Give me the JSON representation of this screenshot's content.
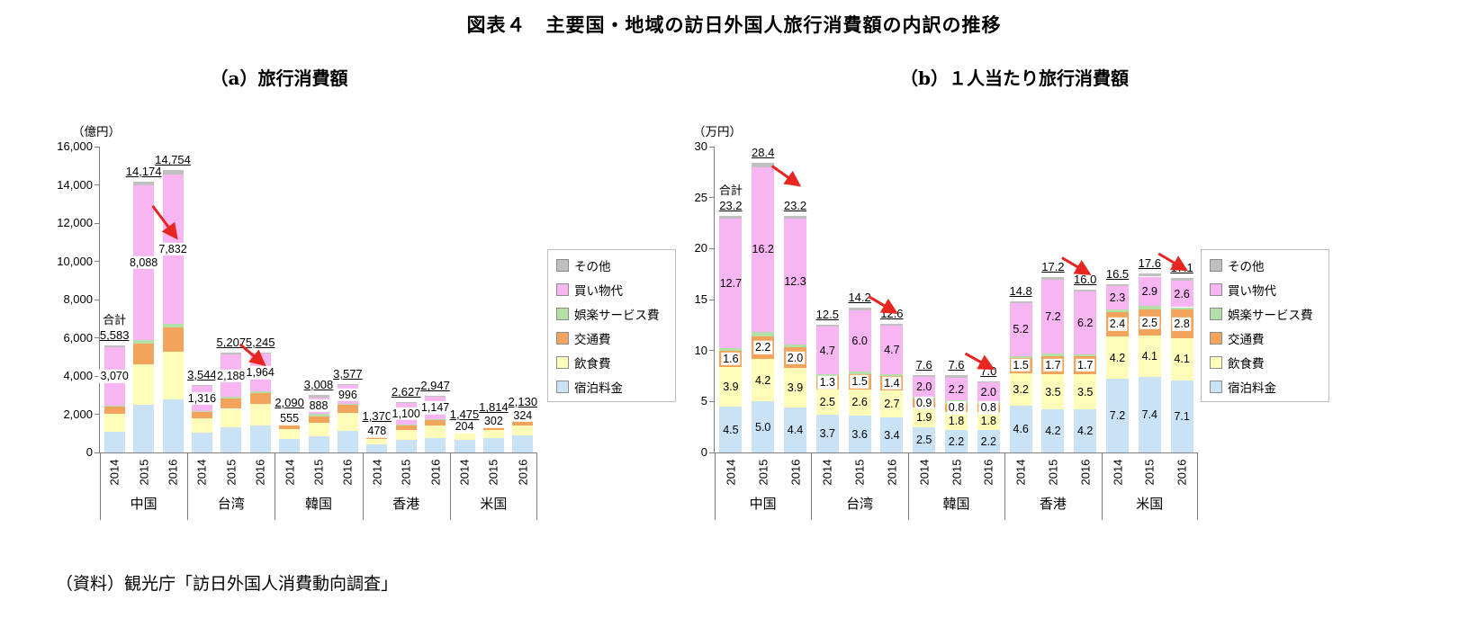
{
  "title": "図表４　主要国・地域の訪日外国人旅行消費額の内訳の推移",
  "source_note": "（資料）観光庁「訪日外国人消費動向調査」",
  "legend": {
    "items": [
      {
        "key": "other",
        "label": "その他",
        "color": "#c0c0c0"
      },
      {
        "key": "shopping",
        "label": "買い物代",
        "color": "#f7b6f1"
      },
      {
        "key": "entertainment",
        "label": "娯楽サービス費",
        "color": "#b3e0a6"
      },
      {
        "key": "transport",
        "label": "交通費",
        "color": "#f2a45c"
      },
      {
        "key": "food",
        "label": "飲食費",
        "color": "#fffbb9"
      },
      {
        "key": "lodging",
        "label": "宿泊料金",
        "color": "#c9e2f6"
      }
    ]
  },
  "chart_data": [
    {
      "id": "a",
      "type": "bar",
      "stacked": true,
      "subtitle": "（a）旅行消費額",
      "unit_label": "（億円）",
      "total_prefix": "合計",
      "ylim": [
        0,
        16000
      ],
      "yticks": [
        "0",
        "2,000",
        "4,000",
        "6,000",
        "8,000",
        "10,000",
        "12,000",
        "14,000",
        "16,000"
      ],
      "groups": [
        "中国",
        "台湾",
        "韓国",
        "香港",
        "米国"
      ],
      "years": [
        "2014",
        "2015",
        "2016"
      ],
      "stack_order": [
        "宿泊料金",
        "飲食費",
        "交通費",
        "娯楽サービス費",
        "買い物代",
        "その他"
      ],
      "boxed_label_series": [
        "買い物代"
      ],
      "bars": [
        {
          "group": "中国",
          "year": "2014",
          "total": 5583,
          "total_label": "5,583",
          "show_total_prefix": true,
          "segments": {
            "宿泊料金": 1080,
            "飲食費": 930,
            "交通費": 380,
            "娯楽サービス費": 60,
            "買い物代": 3070,
            "その他": 63
          },
          "segment_labels": {
            "買い物代": "3,070"
          }
        },
        {
          "group": "中国",
          "year": "2015",
          "total": 14174,
          "total_label": "14,174",
          "segments": {
            "宿泊料金": 2494,
            "飲食費": 2095,
            "交通費": 1098,
            "娯楽サービス費": 200,
            "買い物代": 8088,
            "その他": 199
          },
          "segment_labels": {
            "買い物代": "8,088"
          }
        },
        {
          "group": "中国",
          "year": "2016",
          "total": 14754,
          "total_label": "14,754",
          "segments": {
            "宿泊料金": 2794,
            "飲食費": 2476,
            "交通費": 1270,
            "娯楽サービス費": 190,
            "買い物代": 7832,
            "その他": 192
          },
          "segment_labels": {
            "買い物代": "7,832"
          }
        },
        {
          "group": "台湾",
          "year": "2014",
          "total": 3544,
          "total_label": "3,544",
          "segments": {
            "宿泊料金": 1057,
            "飲食費": 714,
            "交通費": 371,
            "娯楽サービス費": 43,
            "買い物代": 1316,
            "その他": 43
          },
          "segment_labels": {
            "買い物代": "1,316"
          }
        },
        {
          "group": "台湾",
          "year": "2015",
          "total": 5207,
          "total_label": "5,207",
          "segments": {
            "宿泊料金": 1325,
            "飲食費": 957,
            "交通費": 552,
            "娯楽サービス費": 92,
            "買い物代": 2188,
            "その他": 93
          },
          "segment_labels": {
            "買い物代": "2,188"
          }
        },
        {
          "group": "台湾",
          "year": "2016",
          "total": 5245,
          "total_label": "5,245",
          "segments": {
            "宿泊料金": 1412,
            "飲食費": 1121,
            "交通費": 581,
            "娯楽サービス費": 83,
            "買い物代": 1964,
            "その他": 84
          },
          "segment_labels": {
            "買い物代": "1,964"
          }
        },
        {
          "group": "韓国",
          "year": "2014",
          "total": 2090,
          "total_label": "2,090",
          "segments": {
            "宿泊料金": 685,
            "飲食費": 521,
            "交通費": 247,
            "娯楽サービス費": 41,
            "買い物代": 555,
            "その他": 41
          },
          "segment_labels": {
            "買い物代": "555"
          }
        },
        {
          "group": "韓国",
          "year": "2015",
          "total": 3008,
          "total_label": "3,008",
          "segments": {
            "宿泊料金": 864,
            "飲食費": 707,
            "交通費": 314,
            "娯楽サービス費": 117,
            "買い物代": 888,
            "その他": 118
          },
          "segment_labels": {
            "買い物代": "888"
          }
        },
        {
          "group": "韓国",
          "year": "2016",
          "total": 3577,
          "total_label": "3,577",
          "segments": {
            "宿泊料金": 1136,
            "飲食費": 929,
            "交通費": 413,
            "娯楽サービス費": 51,
            "買い物代": 996,
            "その他": 52
          },
          "segment_labels": {
            "買い物代": "996"
          }
        },
        {
          "group": "香港",
          "year": "2014",
          "total": 1370,
          "total_label": "1,370",
          "segments": {
            "宿泊料金": 427,
            "飲食費": 297,
            "交通費": 139,
            "娯楽サービス費": 14,
            "買い物代": 478,
            "その他": 15
          },
          "segment_labels": {
            "買い物代": "478"
          }
        },
        {
          "group": "香港",
          "year": "2015",
          "total": 2627,
          "total_label": "2,627",
          "segments": {
            "宿泊料金": 641,
            "飲食費": 534,
            "交通費": 260,
            "娯楽サービス費": 46,
            "買い物代": 1100,
            "その他": 46
          },
          "segment_labels": {
            "買い物代": "1,100"
          }
        },
        {
          "group": "香港",
          "year": "2016",
          "total": 2947,
          "total_label": "2,947",
          "segments": {
            "宿泊料金": 771,
            "飲食費": 643,
            "交通費": 312,
            "娯楽サービス費": 37,
            "買い物代": 1147,
            "その他": 37
          },
          "segment_labels": {
            "買い物代": "1,147"
          }
        },
        {
          "group": "米国",
          "year": "2014",
          "total": 1475,
          "total_label": "1,475",
          "segments": {
            "宿泊料金": 644,
            "飲食費": 376,
            "交通費": 215,
            "娯楽サービス費": 18,
            "買い物代": 204,
            "その他": 18
          },
          "segment_labels": {
            "買い物代": "204"
          }
        },
        {
          "group": "米国",
          "year": "2015",
          "total": 1814,
          "total_label": "1,814",
          "segments": {
            "宿泊料金": 761,
            "飲食費": 422,
            "交通費": 257,
            "娯楽サービス費": 36,
            "買い物代": 302,
            "その他": 36
          },
          "segment_labels": {
            "買い物代": "302"
          }
        },
        {
          "group": "米国",
          "year": "2016",
          "total": 2130,
          "total_label": "2,130",
          "segments": {
            "宿泊料金": 885,
            "飲食費": 511,
            "交通費": 349,
            "娯楽サービス費": 31,
            "買い物代": 324,
            "その他": 30
          },
          "segment_labels": {
            "買い物代": "324"
          }
        }
      ],
      "decline_arrows": [
        {
          "from_bar": 1,
          "to_bar": 2,
          "from_value": 12900,
          "to_value": 11300
        },
        {
          "from_bar": 4,
          "to_bar": 5,
          "from_value": 5650,
          "to_value": 4650
        }
      ]
    },
    {
      "id": "b",
      "type": "bar",
      "stacked": true,
      "subtitle": "（b）１人当たり旅行消費額",
      "unit_label": "（万円）",
      "total_prefix": "合計",
      "ylim": [
        0,
        30
      ],
      "yticks": [
        "0",
        "5",
        "10",
        "15",
        "20",
        "25",
        "30"
      ],
      "groups": [
        "中国",
        "台湾",
        "韓国",
        "香港",
        "米国"
      ],
      "years": [
        "2014",
        "2015",
        "2016"
      ],
      "stack_order": [
        "宿泊料金",
        "飲食費",
        "交通費",
        "娯楽サービス費",
        "買い物代",
        "その他"
      ],
      "boxed_label_series": [
        "交通費"
      ],
      "bars": [
        {
          "group": "中国",
          "year": "2014",
          "total": 23.2,
          "total_label": "23.2",
          "show_total_prefix": true,
          "segments": {
            "宿泊料金": 4.5,
            "飲食費": 3.9,
            "交通費": 1.6,
            "娯楽サービス費": 0.25,
            "買い物代": 12.7,
            "その他": 0.25
          },
          "segment_labels": {
            "宿泊料金": "4.5",
            "飲食費": "3.9",
            "交通費": "1.6",
            "買い物代": "12.7"
          }
        },
        {
          "group": "中国",
          "year": "2015",
          "total": 28.4,
          "total_label": "28.4",
          "segments": {
            "宿泊料金": 5.0,
            "飲食費": 4.2,
            "交通費": 2.2,
            "娯楽サービス費": 0.4,
            "買い物代": 16.2,
            "その他": 0.4
          },
          "segment_labels": {
            "宿泊料金": "5.0",
            "飲食費": "4.2",
            "交通費": "2.2",
            "買い物代": "16.2"
          }
        },
        {
          "group": "中国",
          "year": "2016",
          "total": 23.2,
          "total_label": "23.2",
          "segments": {
            "宿泊料金": 4.4,
            "飲食費": 3.9,
            "交通費": 2.0,
            "娯楽サービス費": 0.3,
            "買い物代": 12.3,
            "その他": 0.3
          },
          "segment_labels": {
            "宿泊料金": "4.4",
            "飲食費": "3.9",
            "交通費": "2.0",
            "買い物代": "12.3"
          }
        },
        {
          "group": "台湾",
          "year": "2014",
          "total": 12.5,
          "total_label": "12.5",
          "segments": {
            "宿泊料金": 3.7,
            "飲食費": 2.5,
            "交通費": 1.3,
            "娯楽サービス費": 0.15,
            "買い物代": 4.7,
            "その他": 0.15
          },
          "segment_labels": {
            "宿泊料金": "3.7",
            "飲食費": "2.5",
            "交通費": "1.3",
            "買い物代": "4.7"
          }
        },
        {
          "group": "台湾",
          "year": "2015",
          "total": 14.2,
          "total_label": "14.2",
          "segments": {
            "宿泊料金": 3.6,
            "飲食費": 2.6,
            "交通費": 1.5,
            "娯楽サービス費": 0.25,
            "買い物代": 6.0,
            "その他": 0.25
          },
          "segment_labels": {
            "宿泊料金": "3.6",
            "飲食費": "2.6",
            "交通費": "1.5",
            "買い物代": "6.0"
          }
        },
        {
          "group": "台湾",
          "year": "2016",
          "total": 12.6,
          "total_label": "12.6",
          "segments": {
            "宿泊料金": 3.4,
            "飲食費": 2.7,
            "交通費": 1.4,
            "娯楽サービス費": 0.2,
            "買い物代": 4.7,
            "その他": 0.2
          },
          "segment_labels": {
            "宿泊料金": "3.4",
            "飲食費": "2.7",
            "交通費": "1.4",
            "買い物代": "4.7"
          }
        },
        {
          "group": "韓国",
          "year": "2014",
          "total": 7.6,
          "total_label": "7.6",
          "segments": {
            "宿泊料金": 2.5,
            "飲食費": 1.9,
            "交通費": 0.9,
            "娯楽サービス費": 0.15,
            "買い物代": 2.0,
            "その他": 0.15
          },
          "segment_labels": {
            "宿泊料金": "2.5",
            "飲食費": "1.9",
            "交通費": "0.9",
            "買い物代": "2.0"
          }
        },
        {
          "group": "韓国",
          "year": "2015",
          "total": 7.6,
          "total_label": "7.6",
          "segments": {
            "宿泊料金": 2.2,
            "飲食費": 1.8,
            "交通費": 0.8,
            "娯楽サービス費": 0.3,
            "買い物代": 2.2,
            "その他": 0.3
          },
          "segment_labels": {
            "宿泊料金": "2.2",
            "飲食費": "1.8",
            "交通費": "0.8",
            "買い物代": "2.2"
          }
        },
        {
          "group": "韓国",
          "year": "2016",
          "total": 7.0,
          "total_label": "7.0",
          "segments": {
            "宿泊料金": 2.2,
            "飲食費": 1.8,
            "交通費": 0.8,
            "娯楽サービス費": 0.1,
            "買い物代": 2.0,
            "その他": 0.1
          },
          "segment_labels": {
            "宿泊料金": "2.2",
            "飲食費": "1.8",
            "交通費": "0.8",
            "買い物代": "2.0"
          }
        },
        {
          "group": "香港",
          "year": "2014",
          "total": 14.8,
          "total_label": "14.8",
          "segments": {
            "宿泊料金": 4.6,
            "飲食費": 3.2,
            "交通費": 1.5,
            "娯楽サービス費": 0.15,
            "買い物代": 5.2,
            "その他": 0.15
          },
          "segment_labels": {
            "宿泊料金": "4.6",
            "飲食費": "3.2",
            "交通費": "1.5",
            "買い物代": "5.2"
          }
        },
        {
          "group": "香港",
          "year": "2015",
          "total": 17.2,
          "total_label": "17.2",
          "segments": {
            "宿泊料金": 4.2,
            "飲食費": 3.5,
            "交通費": 1.7,
            "娯楽サービス費": 0.3,
            "買い物代": 7.2,
            "その他": 0.3
          },
          "segment_labels": {
            "宿泊料金": "4.2",
            "飲食費": "3.5",
            "交通費": "1.7",
            "買い物代": "7.2"
          }
        },
        {
          "group": "香港",
          "year": "2016",
          "total": 16.0,
          "total_label": "16.0",
          "segments": {
            "宿泊料金": 4.2,
            "飲食費": 3.5,
            "交通費": 1.7,
            "娯楽サービス費": 0.2,
            "買い物代": 6.2,
            "その他": 0.2
          },
          "segment_labels": {
            "宿泊料金": "4.2",
            "飲食費": "3.5",
            "交通費": "1.7",
            "買い物代": "6.2"
          }
        },
        {
          "group": "米国",
          "year": "2014",
          "total": 16.5,
          "total_label": "16.5",
          "segments": {
            "宿泊料金": 7.2,
            "飲食費": 4.2,
            "交通費": 2.4,
            "娯楽サービス費": 0.2,
            "買い物代": 2.3,
            "その他": 0.2
          },
          "segment_labels": {
            "宿泊料金": "7.2",
            "飲食費": "4.2",
            "交通費": "2.4",
            "買い物代": "2.3"
          }
        },
        {
          "group": "米国",
          "year": "2015",
          "total": 17.6,
          "total_label": "17.6",
          "segments": {
            "宿泊料金": 7.4,
            "飲食費": 4.1,
            "交通費": 2.5,
            "娯楽サービス費": 0.35,
            "買い物代": 2.9,
            "その他": 0.35
          },
          "segment_labels": {
            "宿泊料金": "7.4",
            "飲食費": "4.1",
            "交通費": "2.5",
            "買い物代": "2.9"
          }
        },
        {
          "group": "米国",
          "year": "2016",
          "total": 17.1,
          "total_label": "17.1",
          "segments": {
            "宿泊料金": 7.1,
            "飲食費": 4.1,
            "交通費": 2.8,
            "娯楽サービス費": 0.25,
            "買い物代": 2.6,
            "その他": 0.25
          },
          "segment_labels": {
            "宿泊料金": "7.1",
            "飲食費": "4.1",
            "交通費": "2.8",
            "買い物代": "2.6"
          }
        }
      ],
      "decline_arrows": [
        {
          "from_bar": 1,
          "to_bar": 2,
          "from_value": 28.1,
          "to_value": 26.3
        },
        {
          "from_bar": 4,
          "to_bar": 5,
          "from_value": 15.3,
          "to_value": 13.8
        },
        {
          "from_bar": 7,
          "to_bar": 8,
          "from_value": 9.7,
          "to_value": 8.3
        },
        {
          "from_bar": 10,
          "to_bar": 11,
          "from_value": 19.1,
          "to_value": 17.6
        },
        {
          "from_bar": 13,
          "to_bar": 14,
          "from_value": 19.5,
          "to_value": 18.0
        }
      ]
    }
  ],
  "colors": {
    "arrow": "#e8251f",
    "axis": "#7f7f7f"
  }
}
